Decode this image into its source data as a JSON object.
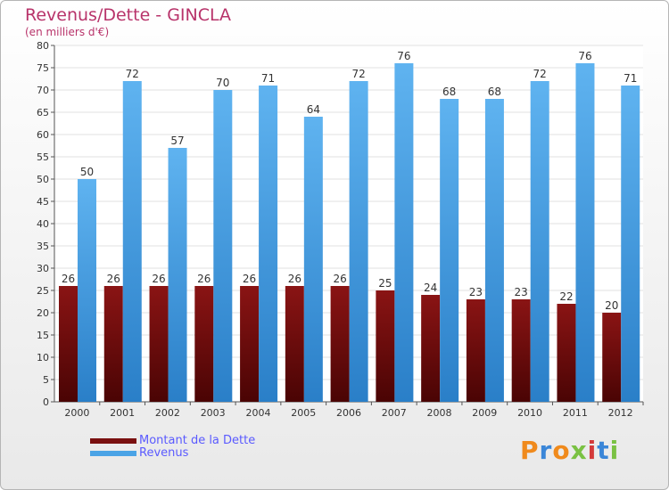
{
  "chart_data": {
    "type": "bar",
    "title": "Revenus/Dette - GINCLA",
    "subtitle": "(en milliers d'€)",
    "categories": [
      "2000",
      "2001",
      "2002",
      "2003",
      "2004",
      "2005",
      "2006",
      "2007",
      "2008",
      "2009",
      "2010",
      "2011",
      "2012"
    ],
    "series": [
      {
        "name": "Montant de la Dette",
        "color": "#7a1010",
        "values": [
          26,
          26,
          26,
          26,
          26,
          26,
          26,
          25,
          24,
          23,
          23,
          22,
          20
        ]
      },
      {
        "name": "Revenus",
        "color": "#4aa3e6",
        "values": [
          50,
          72,
          57,
          70,
          71,
          64,
          72,
          76,
          68,
          68,
          72,
          76,
          71
        ]
      }
    ],
    "ylim": [
      0,
      80
    ],
    "yticks": [
      0,
      5,
      10,
      15,
      20,
      25,
      30,
      35,
      40,
      45,
      50,
      55,
      60,
      65,
      70,
      75,
      80
    ],
    "grid": true,
    "legend_position": "bottom-left"
  },
  "logo": {
    "text": "Proxiti",
    "colors": [
      "#f08a1c",
      "#3a86d8",
      "#f08a1c",
      "#7ac143",
      "#d43a3a",
      "#3a86d8",
      "#7ac143"
    ]
  }
}
